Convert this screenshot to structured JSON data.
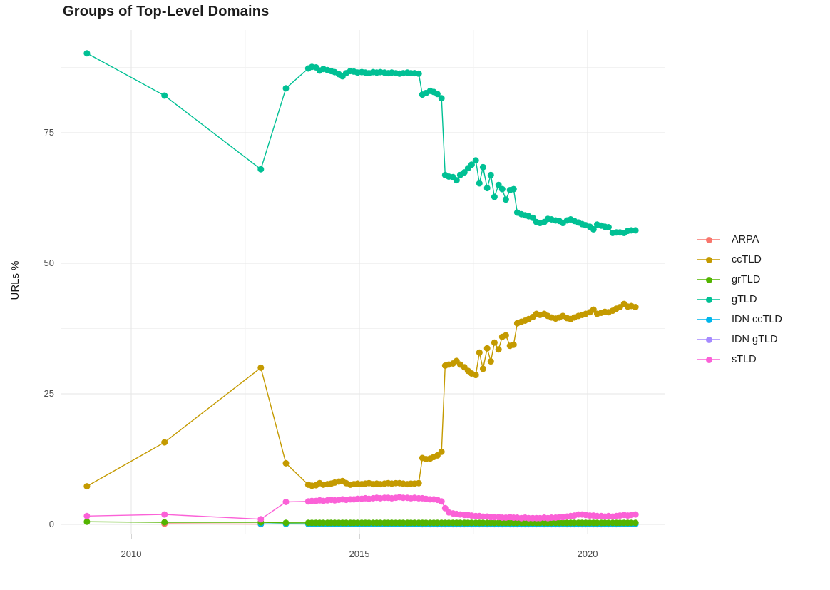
{
  "title": "Groups of Top-Level Domains",
  "y_axis": {
    "label": "URLs %",
    "tick_labels": [
      "0",
      "25",
      "50",
      "75"
    ],
    "ticks": [
      0,
      25,
      50,
      75
    ]
  },
  "x_axis": {
    "tick_labels": [
      "2010",
      "2015",
      "2020"
    ],
    "ticks": [
      2010,
      2015,
      2020
    ]
  },
  "legend": {
    "position": "right",
    "entries": [
      {
        "label": "ARPA",
        "color": "#F8766D"
      },
      {
        "label": "ccTLD",
        "color": "#C49A00"
      },
      {
        "label": "grTLD",
        "color": "#53B400"
      },
      {
        "label": "gTLD",
        "color": "#00C094"
      },
      {
        "label": "IDN ccTLD",
        "color": "#00B6EB"
      },
      {
        "label": "IDN gTLD",
        "color": "#A58AFF"
      },
      {
        "label": "sTLD",
        "color": "#FB61D7"
      }
    ]
  },
  "chart_data": {
    "type": "line",
    "title": "Groups of Top-Level Domains",
    "xlabel": "",
    "ylabel": "URLs %",
    "xlim": [
      2008.5,
      2021.6
    ],
    "ylim": [
      0,
      96.5
    ],
    "grid": {
      "x_major": [
        2010,
        2015,
        2020
      ],
      "x_minor": [
        2012.5,
        2017.5
      ],
      "y_major": [
        0,
        25,
        50,
        75
      ],
      "y_minor": [
        12.5,
        37.5,
        62.5,
        87.5
      ]
    },
    "legend_position": "right",
    "x": [
      2009.03,
      2010.73,
      2012.84,
      2013.39,
      2013.88,
      2013.96,
      2014.05,
      2014.13,
      2014.21,
      2014.3,
      2014.38,
      2014.46,
      2014.55,
      2014.63,
      2014.71,
      2014.8,
      2014.88,
      2014.96,
      2015.05,
      2015.13,
      2015.21,
      2015.3,
      2015.38,
      2015.46,
      2015.55,
      2015.63,
      2015.71,
      2015.8,
      2015.88,
      2015.96,
      2016.05,
      2016.13,
      2016.21,
      2016.3,
      2016.38,
      2016.46,
      2016.55,
      2016.63,
      2016.71,
      2016.8,
      2016.88,
      2016.96,
      2017.05,
      2017.13,
      2017.21,
      2017.3,
      2017.38,
      2017.46,
      2017.55,
      2017.63,
      2017.71,
      2017.8,
      2017.88,
      2017.96,
      2018.05,
      2018.13,
      2018.21,
      2018.3,
      2018.38,
      2018.46,
      2018.55,
      2018.63,
      2018.71,
      2018.8,
      2018.88,
      2018.96,
      2019.05,
      2019.13,
      2019.21,
      2019.3,
      2019.38,
      2019.46,
      2019.55,
      2019.63,
      2019.71,
      2019.8,
      2019.88,
      2019.96,
      2020.05,
      2020.13,
      2020.21,
      2020.3,
      2020.38,
      2020.46,
      2020.55,
      2020.63,
      2020.71,
      2020.8,
      2020.88,
      2020.96,
      2021.05
    ],
    "draw_order": [
      "ARPA",
      "IDN gTLD",
      "IDN ccTLD",
      "grTLD",
      "ccTLD",
      "gTLD",
      "sTLD"
    ],
    "series": [
      {
        "name": "ARPA",
        "color": "#F8766D",
        "x_start_index": 1,
        "values": [
          0.12,
          0.06
        ]
      },
      {
        "name": "ccTLD",
        "color": "#C49A00",
        "x_start_index": 0,
        "values": [
          7.3,
          15.7,
          30.0,
          11.7,
          7.6,
          7.4,
          7.5,
          7.9,
          7.6,
          7.7,
          7.8,
          8.0,
          8.2,
          8.3,
          7.9,
          7.6,
          7.7,
          7.8,
          7.7,
          7.8,
          7.9,
          7.7,
          7.8,
          7.7,
          7.8,
          7.9,
          7.8,
          7.9,
          7.9,
          7.8,
          7.7,
          7.8,
          7.8,
          7.9,
          12.7,
          12.5,
          12.6,
          12.9,
          13.2,
          13.9,
          30.4,
          30.6,
          30.8,
          31.3,
          30.6,
          30.1,
          29.4,
          28.9,
          28.6,
          32.9,
          29.8,
          33.7,
          31.2,
          34.8,
          33.5,
          35.9,
          36.2,
          34.2,
          34.4,
          38.5,
          38.8,
          39.0,
          39.3,
          39.7,
          40.3,
          40.1,
          40.3,
          39.9,
          39.6,
          39.4,
          39.6,
          39.9,
          39.5,
          39.3,
          39.6,
          39.9,
          40.1,
          40.3,
          40.6,
          41.1,
          40.3,
          40.5,
          40.7,
          40.6,
          40.9,
          41.3,
          41.6,
          42.2,
          41.7,
          41.8,
          41.6
        ]
      },
      {
        "name": "grTLD",
        "color": "#53B400",
        "x_start_index": 0,
        "values": [
          0.5,
          0.4,
          0.4,
          0.3,
          0.3,
          0.3,
          0.3,
          0.3,
          0.3,
          0.3,
          0.3,
          0.3,
          0.3,
          0.3,
          0.3,
          0.3,
          0.3,
          0.3,
          0.3,
          0.3,
          0.3,
          0.3,
          0.3,
          0.3,
          0.3,
          0.3,
          0.3,
          0.3,
          0.3,
          0.3,
          0.3,
          0.3,
          0.3,
          0.3,
          0.3,
          0.3,
          0.3,
          0.3,
          0.3,
          0.3,
          0.3,
          0.3,
          0.3,
          0.3,
          0.3,
          0.3,
          0.3,
          0.3,
          0.3,
          0.3,
          0.3,
          0.3,
          0.3,
          0.3,
          0.3,
          0.3,
          0.3,
          0.3,
          0.3,
          0.3,
          0.3,
          0.3,
          0.3,
          0.3,
          0.3,
          0.3,
          0.3,
          0.3,
          0.3,
          0.3,
          0.3,
          0.3,
          0.3,
          0.3,
          0.3,
          0.3,
          0.3,
          0.3,
          0.3,
          0.3,
          0.3,
          0.3,
          0.3,
          0.3,
          0.3,
          0.3,
          0.3,
          0.3,
          0.3,
          0.3,
          0.3
        ]
      },
      {
        "name": "gTLD",
        "color": "#00C094",
        "x_start_index": 0,
        "values": [
          90.2,
          82.1,
          68.0,
          83.5,
          87.3,
          87.6,
          87.5,
          86.9,
          87.2,
          87.0,
          86.8,
          86.6,
          86.2,
          85.8,
          86.4,
          86.8,
          86.7,
          86.5,
          86.6,
          86.5,
          86.4,
          86.6,
          86.5,
          86.6,
          86.5,
          86.4,
          86.5,
          86.4,
          86.3,
          86.4,
          86.5,
          86.4,
          86.4,
          86.3,
          82.3,
          82.6,
          83.0,
          82.8,
          82.4,
          81.6,
          66.9,
          66.6,
          66.5,
          65.9,
          66.9,
          67.4,
          68.2,
          68.9,
          69.7,
          65.3,
          68.4,
          64.4,
          66.9,
          62.7,
          65.0,
          64.2,
          62.2,
          64.0,
          64.2,
          59.7,
          59.4,
          59.2,
          59.0,
          58.7,
          57.9,
          57.7,
          57.9,
          58.5,
          58.4,
          58.2,
          58.1,
          57.7,
          58.2,
          58.4,
          58.1,
          57.8,
          57.5,
          57.3,
          57.0,
          56.5,
          57.4,
          57.2,
          57.0,
          56.9,
          55.8,
          55.9,
          55.9,
          55.8,
          56.2,
          56.3,
          56.3
        ]
      },
      {
        "name": "IDN ccTLD",
        "color": "#00B6EB",
        "x_start_index": 2,
        "values": [
          0.1,
          0.1,
          0.08,
          0.08,
          0.08,
          0.08,
          0.08,
          0.08,
          0.08,
          0.08,
          0.08,
          0.08,
          0.08,
          0.08,
          0.08,
          0.08,
          0.08,
          0.08,
          0.08,
          0.08,
          0.08,
          0.08,
          0.08,
          0.08,
          0.08,
          0.08,
          0.08,
          0.08,
          0.08,
          0.08,
          0.08,
          0.08,
          0.08,
          0.08,
          0.08,
          0.08,
          0.08,
          0.08,
          0.08,
          0.08,
          0.08,
          0.08,
          0.08,
          0.08,
          0.08,
          0.08,
          0.08,
          0.08,
          0.08,
          0.08,
          0.08,
          0.08,
          0.08,
          0.08,
          0.08,
          0.08,
          0.08,
          0.08,
          0.08,
          0.08,
          0.08,
          0.08,
          0.08,
          0.08,
          0.08,
          0.08,
          0.08,
          0.08,
          0.08,
          0.08,
          0.08,
          0.08,
          0.08,
          0.08,
          0.08,
          0.08,
          0.08,
          0.08,
          0.08,
          0.08,
          0.08,
          0.08,
          0.08,
          0.08,
          0.08,
          0.08,
          0.08,
          0.08,
          0.08
        ]
      },
      {
        "name": "IDN gTLD",
        "color": "#A58AFF",
        "x_start_index": 34,
        "values": [
          0.04,
          0.04,
          0.04,
          0.04,
          0.04,
          0.04,
          0.04,
          0.04,
          0.04,
          0.04,
          0.04,
          0.04,
          0.04,
          0.04,
          0.04,
          0.04,
          0.04,
          0.04,
          0.04,
          0.04,
          0.04,
          0.04,
          0.04,
          0.04,
          0.04,
          0.04,
          0.04,
          0.04,
          0.04,
          0.04,
          0.04,
          0.04,
          0.04,
          0.04,
          0.04,
          0.04,
          0.04,
          0.04,
          0.04,
          0.04,
          0.04,
          0.04,
          0.04,
          0.04,
          0.04,
          0.04,
          0.04,
          0.04,
          0.04,
          0.04,
          0.04,
          0.04,
          0.04
        ]
      },
      {
        "name": "sTLD",
        "color": "#FB61D7",
        "x_start_index": 0,
        "values": [
          1.6,
          1.9,
          1.0,
          4.3,
          4.4,
          4.5,
          4.5,
          4.6,
          4.5,
          4.6,
          4.7,
          4.6,
          4.7,
          4.8,
          4.7,
          4.8,
          4.8,
          4.9,
          4.9,
          5.0,
          4.9,
          5.0,
          5.1,
          5.0,
          5.1,
          5.1,
          5.0,
          5.1,
          5.2,
          5.1,
          5.1,
          5.0,
          5.1,
          5.0,
          5.0,
          4.9,
          4.8,
          4.8,
          4.7,
          4.4,
          3.1,
          2.3,
          2.1,
          2.0,
          1.9,
          1.8,
          1.8,
          1.7,
          1.6,
          1.6,
          1.5,
          1.5,
          1.4,
          1.4,
          1.4,
          1.3,
          1.3,
          1.4,
          1.3,
          1.3,
          1.2,
          1.3,
          1.2,
          1.2,
          1.2,
          1.2,
          1.3,
          1.2,
          1.3,
          1.3,
          1.4,
          1.4,
          1.5,
          1.6,
          1.7,
          1.9,
          1.9,
          1.8,
          1.7,
          1.7,
          1.6,
          1.6,
          1.5,
          1.6,
          1.5,
          1.6,
          1.7,
          1.8,
          1.7,
          1.8,
          1.9
        ]
      }
    ]
  }
}
